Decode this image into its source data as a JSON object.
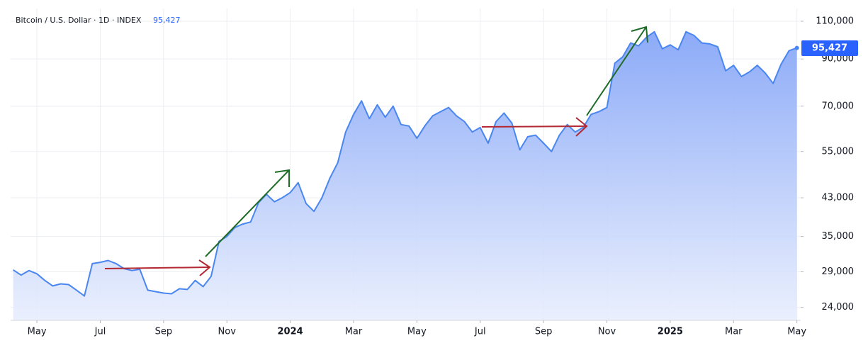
{
  "chart_data": {
    "type": "area",
    "title": "Bitcoin / U.S. Dollar · 1D · INDEX",
    "last_value_label": "95,427",
    "color": "#4a86f0",
    "log_scale": true,
    "grid": true,
    "xlim": [
      -0.83,
      24.12
    ],
    "xticks": [
      {
        "value": 0,
        "label": "May"
      },
      {
        "value": 2,
        "label": "Jul"
      },
      {
        "value": 4,
        "label": "Sep"
      },
      {
        "value": 6,
        "label": "Nov"
      },
      {
        "value": 8,
        "label": "2024"
      },
      {
        "value": 10,
        "label": "Mar"
      },
      {
        "value": 12,
        "label": "May"
      },
      {
        "value": 14,
        "label": "Jul"
      },
      {
        "value": 16,
        "label": "Sep"
      },
      {
        "value": 18,
        "label": "Nov"
      },
      {
        "value": 20,
        "label": "2025"
      },
      {
        "value": 22,
        "label": "Mar"
      },
      {
        "value": 24,
        "label": "May"
      }
    ],
    "ylim": [
      22400,
      117700
    ],
    "yticks": [
      {
        "value": 24000,
        "label": "24,000"
      },
      {
        "value": 29000,
        "label": "29,000"
      },
      {
        "value": 35000,
        "label": "35,000"
      },
      {
        "value": 43000,
        "label": "43,000"
      },
      {
        "value": 55000,
        "label": "55,000"
      },
      {
        "value": 70000,
        "label": "70,000"
      },
      {
        "value": 90000,
        "label": "90,000"
      },
      {
        "value": 110000,
        "label": "110,000"
      }
    ],
    "x": [
      -0.75,
      -0.5,
      -0.25,
      0,
      0.25,
      0.5,
      0.75,
      1,
      1.25,
      1.5,
      1.75,
      2,
      2.25,
      2.5,
      2.75,
      3,
      3.25,
      3.5,
      3.75,
      4,
      4.25,
      4.5,
      4.75,
      5,
      5.25,
      5.5,
      5.75,
      6,
      6.25,
      6.5,
      6.75,
      7,
      7.25,
      7.5,
      7.75,
      8,
      8.25,
      8.5,
      8.75,
      9,
      9.25,
      9.5,
      9.75,
      10,
      10.25,
      10.5,
      10.75,
      11,
      11.25,
      11.5,
      11.75,
      12,
      12.25,
      12.5,
      12.75,
      13,
      13.25,
      13.5,
      13.75,
      14,
      14.25,
      14.5,
      14.75,
      15,
      15.25,
      15.5,
      15.75,
      16,
      16.25,
      16.5,
      16.75,
      17,
      17.25,
      17.5,
      17.75,
      18,
      18.25,
      18.5,
      18.75,
      19,
      19.25,
      19.5,
      19.75,
      20,
      20.25,
      20.5,
      20.75,
      21,
      21.25,
      21.5,
      21.75,
      22,
      22.25,
      22.5,
      22.75,
      23,
      23.25,
      23.5,
      23.75,
      24
    ],
    "values": [
      29300,
      28500,
      29200,
      28700,
      27700,
      26900,
      27200,
      27100,
      26300,
      25500,
      30300,
      30500,
      30800,
      30300,
      29500,
      29200,
      29400,
      26300,
      26100,
      25900,
      25800,
      26500,
      26400,
      27700,
      26800,
      28300,
      34100,
      35000,
      36700,
      37400,
      37800,
      41900,
      43800,
      42100,
      43000,
      44200,
      46600,
      41700,
      40000,
      43000,
      47700,
      51800,
      61000,
      67000,
      72000,
      65500,
      70500,
      66000,
      70000,
      63500,
      63000,
      59000,
      63000,
      66500,
      68000,
      69500,
      66500,
      64500,
      61000,
      62500,
      57500,
      64500,
      67500,
      64000,
      55500,
      59500,
      60000,
      57500,
      55000,
      60000,
      63500,
      61000,
      62500,
      67000,
      68000,
      69500,
      88000,
      91000,
      98000,
      96500,
      101000,
      104000,
      95000,
      97000,
      94500,
      104000,
      102000,
      98000,
      97500,
      96000,
      84500,
      87000,
      82000,
      84000,
      87000,
      83500,
      79000,
      87500,
      94000,
      95427
    ]
  }
}
